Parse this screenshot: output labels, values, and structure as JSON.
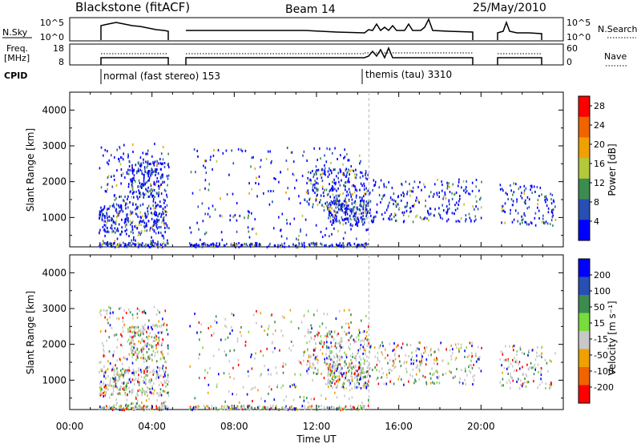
{
  "header": {
    "station": "Blackstone (fitACF)",
    "beam": "Beam 14",
    "date": "25/May/2010"
  },
  "top_panels": {
    "nsky_label": "N.Sky",
    "nsky_ticks": [
      "10^5",
      "10^0"
    ],
    "nsearch_label": "N.Search",
    "nsearch_ticks": [
      "10^5",
      "10^0"
    ],
    "freq_label_1": "Freq.",
    "freq_label_2": "[MHz]",
    "freq_ticks": [
      "18",
      "8"
    ],
    "nave_label": "Nave",
    "nave_ticks": [
      "60",
      "0"
    ],
    "cpid_label": "CPID",
    "cpid_1": "normal (fast stereo) 153",
    "cpid_2": "themis (tau) 3310"
  },
  "chart_data": [
    {
      "type": "heatmap",
      "title": "",
      "xlabel": "",
      "ylabel": "Slant Range [km]",
      "xlim": [
        0,
        24
      ],
      "ylim": [
        180,
        4500
      ],
      "y_ticks": [
        "1000",
        "2000",
        "3000",
        "4000"
      ],
      "colorbar": {
        "label": "Power [dB]",
        "ticks": [
          "4",
          "8",
          "12",
          "16",
          "20",
          "24",
          "28"
        ],
        "range": [
          0,
          30
        ]
      },
      "colors": [
        "#0000ff",
        "#2850b4",
        "#3c8c50",
        "#b4c83c",
        "#f0a000",
        "#f06400",
        "#ff0000"
      ]
    },
    {
      "type": "heatmap",
      "title": "",
      "xlabel": "Time UT",
      "ylabel": "Slant Range [km]",
      "xlim": [
        0,
        24
      ],
      "ylim": [
        180,
        4500
      ],
      "x_ticks": [
        "00:00",
        "04:00",
        "08:00",
        "12:00",
        "16:00",
        "20:00"
      ],
      "y_ticks": [
        "1000",
        "2000",
        "3000",
        "4000"
      ],
      "colorbar": {
        "label": "Velocity [m s⁻¹]",
        "ticks": [
          "200",
          "100",
          "50",
          "15",
          "-15",
          "-50",
          "-100",
          "-200"
        ],
        "range": [
          -250,
          250
        ]
      },
      "colors": [
        "#0000ff",
        "#2850b4",
        "#3c8c50",
        "#78dc3c",
        "#c8c8c8",
        "#f0a000",
        "#f06400",
        "#ff0000"
      ]
    }
  ]
}
